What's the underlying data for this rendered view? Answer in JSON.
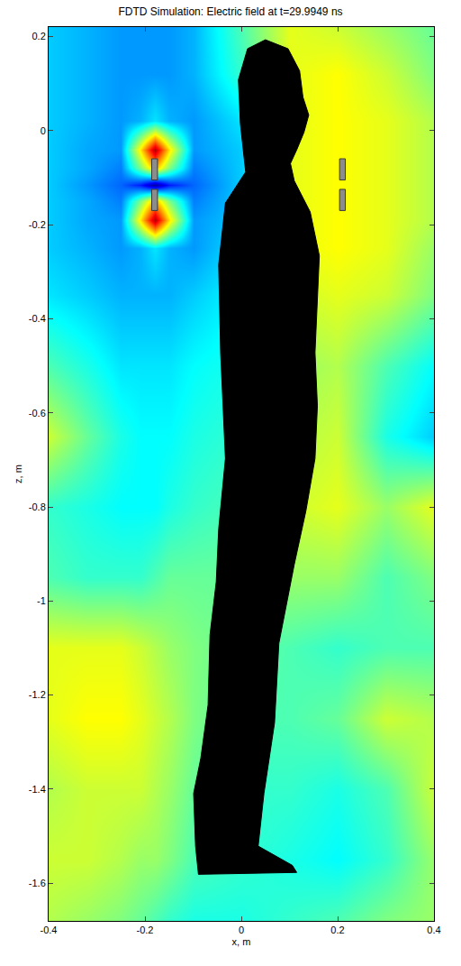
{
  "chart_data": {
    "type": "heatmap",
    "title": "FDTD Simulation: Electric field at t=29.9949 ns",
    "x_label": "x, m",
    "y_label": "z, m",
    "xlim": [
      -0.4,
      0.4
    ],
    "ylim": [
      -1.68,
      0.22
    ],
    "xticks": [
      -0.4,
      -0.2,
      0,
      0.2,
      0.4
    ],
    "yticks": [
      -1.6,
      -1.4,
      -1.2,
      -1,
      -0.8,
      -0.6,
      -0.4,
      -0.2,
      0,
      0.2
    ],
    "grid": false,
    "x": [
      -0.4,
      -0.32,
      -0.25,
      -0.21,
      -0.18,
      -0.15,
      -0.1,
      0,
      0.1,
      0.2,
      0.3,
      0.4
    ],
    "y": [
      0.22,
      0.12,
      0.02,
      -0.04,
      -0.08,
      -0.115,
      -0.15,
      -0.19,
      -0.25,
      -0.35,
      -0.5,
      -0.65,
      -0.8,
      -0.95,
      -1.1,
      -1.25,
      -1.4,
      -1.55,
      -1.68
    ],
    "cells": [
      [
        -0.35,
        -0.4,
        -0.45,
        -0.45,
        -0.45,
        -0.45,
        -0.4,
        -0.1,
        0.2,
        0.15,
        0.05,
        -0.05
      ],
      [
        -0.35,
        -0.4,
        -0.45,
        -0.45,
        -0.45,
        -0.45,
        -0.4,
        -0.15,
        0.2,
        0.25,
        0.15,
        0.0
      ],
      [
        -0.35,
        -0.4,
        -0.45,
        -0.4,
        -0.3,
        -0.4,
        -0.45,
        -0.3,
        0.2,
        0.25,
        0.2,
        0.1
      ],
      [
        -0.35,
        -0.42,
        -0.45,
        0.3,
        0.9,
        0.3,
        -0.45,
        -0.35,
        0.2,
        0.25,
        0.2,
        0.1
      ],
      [
        -0.35,
        -0.42,
        -0.5,
        0.0,
        0.4,
        0.0,
        -0.5,
        -0.35,
        0.2,
        0.25,
        0.2,
        0.1
      ],
      [
        -0.35,
        -0.45,
        -0.55,
        -0.7,
        -0.95,
        -0.7,
        -0.55,
        -0.35,
        0.2,
        0.25,
        0.2,
        0.1
      ],
      [
        -0.35,
        -0.42,
        -0.5,
        0.0,
        0.4,
        0.0,
        -0.5,
        -0.35,
        0.2,
        0.25,
        0.2,
        0.1
      ],
      [
        -0.35,
        -0.42,
        -0.45,
        0.3,
        0.9,
        0.3,
        -0.45,
        -0.35,
        0.2,
        0.25,
        0.2,
        0.1
      ],
      [
        -0.35,
        -0.4,
        -0.45,
        -0.4,
        -0.3,
        -0.4,
        -0.45,
        -0.3,
        0.2,
        0.25,
        0.2,
        0.05
      ],
      [
        -0.3,
        -0.35,
        -0.4,
        -0.4,
        -0.4,
        -0.4,
        -0.35,
        -0.25,
        0.15,
        0.2,
        0.15,
        0.0
      ],
      [
        -0.1,
        -0.2,
        -0.3,
        -0.3,
        -0.3,
        -0.3,
        -0.25,
        -0.2,
        0.05,
        0.1,
        -0.1,
        -0.25
      ],
      [
        0.15,
        -0.05,
        -0.2,
        -0.25,
        -0.25,
        -0.25,
        -0.2,
        -0.15,
        0.1,
        0.15,
        -0.2,
        -0.35
      ],
      [
        -0.15,
        -0.2,
        -0.25,
        -0.25,
        -0.25,
        -0.2,
        -0.15,
        -0.1,
        0.15,
        0.2,
        0.05,
        0.2
      ],
      [
        -0.1,
        -0.15,
        -0.15,
        -0.15,
        -0.1,
        -0.05,
        -0.05,
        -0.05,
        0.05,
        0.05,
        -0.1,
        0.0
      ],
      [
        0.2,
        0.2,
        0.2,
        0.15,
        0.1,
        0.05,
        0.0,
        -0.05,
        -0.1,
        -0.15,
        -0.1,
        -0.1
      ],
      [
        0.2,
        0.25,
        0.25,
        0.2,
        0.15,
        0.1,
        0.0,
        -0.1,
        -0.1,
        -0.05,
        0.15,
        0.1
      ],
      [
        0.1,
        0.15,
        0.15,
        0.15,
        0.1,
        0.05,
        -0.05,
        -0.15,
        -0.15,
        -0.2,
        -0.1,
        0.15
      ],
      [
        0.15,
        0.15,
        0.1,
        0.05,
        0.05,
        0.0,
        -0.1,
        -0.15,
        -0.2,
        -0.25,
        -0.15,
        0.05
      ],
      [
        0.1,
        0.05,
        0.0,
        -0.05,
        -0.1,
        -0.15,
        -0.2,
        -0.2,
        -0.15,
        -0.1,
        0.0,
        0.05
      ]
    ],
    "color_range": [
      -1,
      1
    ],
    "body": {
      "x": [
        0.05,
        0.097,
        0.121,
        0.128,
        0.14,
        0.13,
        0.115,
        0.102,
        0.11,
        0.143,
        0.162,
        0.158,
        0.153,
        0.158,
        0.153,
        0.134,
        0.11,
        0.078,
        0.069,
        0.047,
        0.035,
        0.106,
        0.115,
        -0.089,
        -0.095,
        -0.099,
        -0.084,
        -0.069,
        -0.065,
        -0.052,
        -0.047,
        -0.033,
        -0.043,
        -0.047,
        -0.033,
        0.009,
        -0.002,
        -0.006,
        0.013
      ],
      "y": [
        0.193,
        0.174,
        0.127,
        0.071,
        0.033,
        -0.004,
        -0.041,
        -0.07,
        -0.107,
        -0.173,
        -0.266,
        -0.36,
        -0.472,
        -0.585,
        -0.697,
        -0.809,
        -0.922,
        -1.09,
        -1.259,
        -1.409,
        -1.521,
        -1.562,
        -1.577,
        -1.581,
        -1.521,
        -1.409,
        -1.334,
        -1.221,
        -1.072,
        -0.959,
        -0.847,
        -0.697,
        -0.472,
        -0.285,
        -0.154,
        -0.088,
        0.015,
        0.108,
        0.174
      ]
    },
    "antennas": [
      {
        "x": -0.18,
        "segments": [
          [
            -0.06,
            -0.105
          ],
          [
            -0.125,
            -0.17
          ]
        ]
      },
      {
        "x": 0.21,
        "segments": [
          [
            -0.06,
            -0.105
          ],
          [
            -0.125,
            -0.17
          ]
        ]
      }
    ]
  }
}
